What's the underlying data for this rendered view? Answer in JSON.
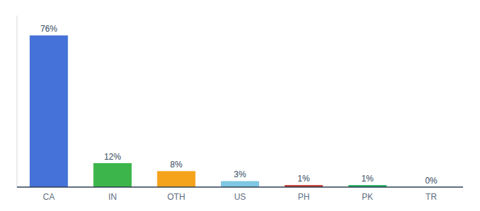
{
  "chart_data": {
    "type": "bar",
    "categories": [
      "CA",
      "IN",
      "OTH",
      "US",
      "PH",
      "PK",
      "TR"
    ],
    "values": [
      76,
      12,
      8,
      3,
      1,
      1,
      0
    ],
    "value_labels": [
      "76%",
      "12%",
      "8%",
      "3%",
      "1%",
      "1%",
      "0%"
    ],
    "colors": [
      "#4472d9",
      "#3cb54a",
      "#f5a31b",
      "#7ec8e3",
      "#c0392b",
      "#27ae60",
      "#bdc3c7"
    ],
    "ylim": [
      0,
      86
    ],
    "data_labels": true,
    "tick_labels": "x"
  }
}
